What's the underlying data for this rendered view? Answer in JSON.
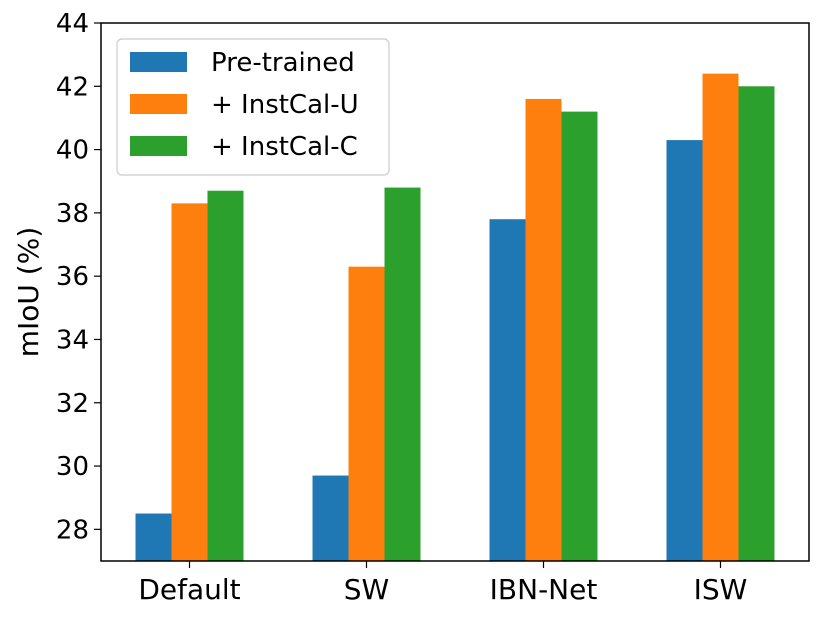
{
  "chart_data": {
    "type": "bar",
    "title": "",
    "xlabel": "",
    "ylabel": "mIoU (%)",
    "categories": [
      "Default",
      "SW",
      "IBN-Net",
      "ISW"
    ],
    "series": [
      {
        "name": "Pre-trained",
        "color": "#1f77b4",
        "values": [
          28.5,
          29.7,
          37.8,
          40.3
        ]
      },
      {
        "name": "+ InstCal-U",
        "color": "#ff7f0e",
        "values": [
          38.3,
          36.3,
          41.6,
          42.4
        ]
      },
      {
        "name": "+ InstCal-C",
        "color": "#2ca02c",
        "values": [
          38.7,
          38.8,
          41.2,
          42.0
        ]
      }
    ],
    "ylim": [
      27,
      44
    ],
    "yticks": [
      28,
      30,
      32,
      34,
      36,
      38,
      40,
      42,
      44
    ],
    "grid": false,
    "legend_position": "top-left"
  }
}
